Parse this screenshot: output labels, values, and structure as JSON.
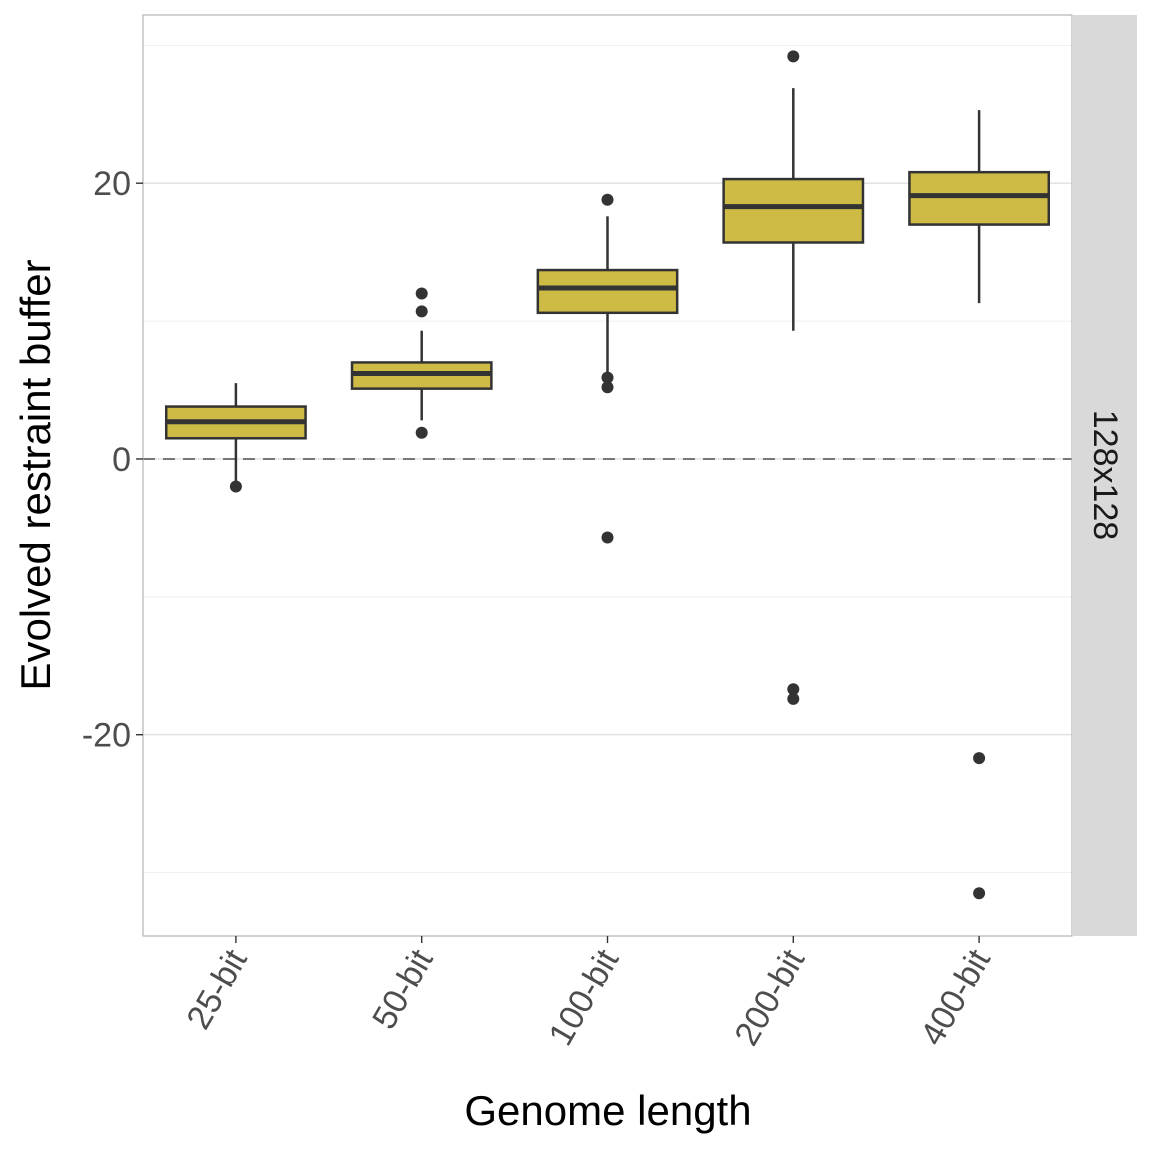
{
  "chart_data": {
    "type": "box",
    "title": "",
    "xlabel": "Genome length",
    "ylabel": "Evolved restraint buffer",
    "facet_label": "128x128",
    "ylim": [
      -34.6,
      32.2
    ],
    "yticks": [
      -20,
      0,
      20
    ],
    "ytick_labels": [
      "-20",
      "0",
      "20"
    ],
    "minor_gridlines": [
      -30,
      -10,
      10,
      30
    ],
    "reference_line": 0,
    "fill_color": "#cdbb45",
    "grid": true,
    "categories": [
      "25-bit",
      "50-bit",
      "100-bit",
      "200-bit",
      "400-bit"
    ],
    "boxes": [
      {
        "lower_whisker": -1.8,
        "q1": 1.5,
        "median": 2.7,
        "q3": 3.8,
        "upper_whisker": 5.5,
        "outliers": [
          -2.0
        ]
      },
      {
        "lower_whisker": 2.8,
        "q1": 5.1,
        "median": 6.2,
        "q3": 7.0,
        "upper_whisker": 9.3,
        "outliers": [
          1.9,
          10.7,
          12.0
        ]
      },
      {
        "lower_whisker": 6.3,
        "q1": 10.6,
        "median": 12.4,
        "q3": 13.7,
        "upper_whisker": 17.6,
        "outliers": [
          18.8,
          5.9,
          5.2,
          -5.7
        ]
      },
      {
        "lower_whisker": 9.3,
        "q1": 15.7,
        "median": 18.3,
        "q3": 20.3,
        "upper_whisker": 26.9,
        "outliers": [
          29.2,
          -16.7,
          -17.4
        ]
      },
      {
        "lower_whisker": 11.3,
        "q1": 17.0,
        "median": 19.1,
        "q3": 20.8,
        "upper_whisker": 25.3,
        "outliers": [
          -21.7,
          -31.5
        ]
      }
    ]
  }
}
